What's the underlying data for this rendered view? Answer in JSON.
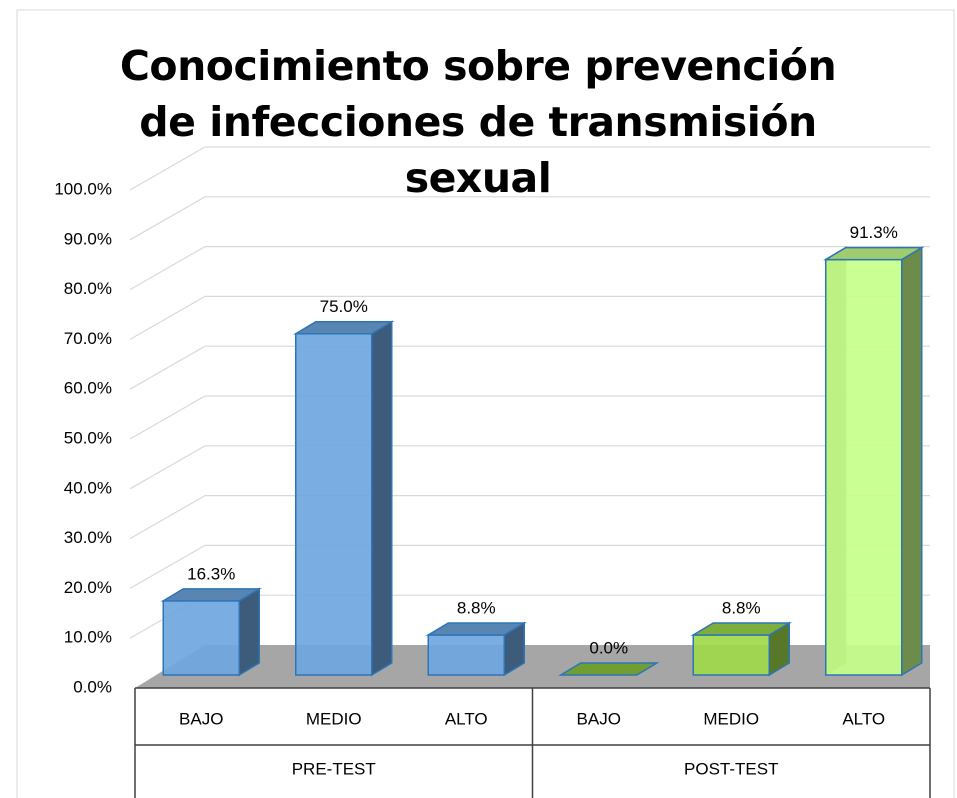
{
  "chart_data": {
    "type": "bar3d",
    "title": "Conocimiento sobre prevención de infecciones de transmisión sexual",
    "categories": [
      "BAJO",
      "MEDIO",
      "ALTO",
      "BAJO",
      "MEDIO",
      "ALTO"
    ],
    "groups": [
      "PRE-TEST",
      "POST-TEST"
    ],
    "values": [
      16.3,
      75.0,
      8.8,
      0.0,
      8.8,
      91.3
    ],
    "value_labels": [
      "16.3%",
      "75.0%",
      "8.8%",
      "0.0%",
      "8.8%",
      "91.3%"
    ],
    "colors": [
      "#6fa6de",
      "#6fa6de",
      "#6fa6de",
      "#8dc63f",
      "#9ed94a",
      "#c6ff8a"
    ],
    "ylim": [
      0,
      100
    ],
    "yticks": [
      {
        "value": 0,
        "label": "0.0%"
      },
      {
        "value": 10,
        "label": "10.0%"
      },
      {
        "value": 20,
        "label": "20.0%"
      },
      {
        "value": 30,
        "label": "30.0%"
      },
      {
        "value": 40,
        "label": "40.0%"
      },
      {
        "value": 50,
        "label": "50.0%"
      },
      {
        "value": 60,
        "label": "60.0%"
      },
      {
        "value": 70,
        "label": "70.0%"
      },
      {
        "value": 80,
        "label": "80.0%"
      },
      {
        "value": 90,
        "label": "90.0%"
      },
      {
        "value": 100,
        "label": "100.0%"
      }
    ],
    "grid": true
  }
}
